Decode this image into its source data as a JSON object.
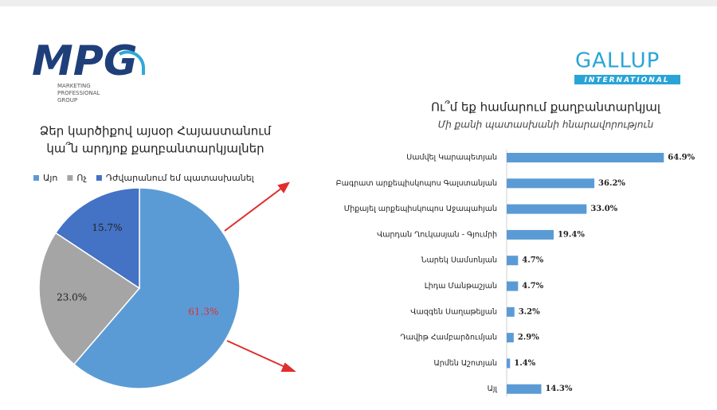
{
  "branding": {
    "left": "MPG",
    "left_sub": [
      "MARKETING",
      "PROFESSIONAL",
      "GROUP"
    ],
    "right": "GALLUP",
    "right_sub": "INTERNATIONAL"
  },
  "chart_data": [
    {
      "type": "pie",
      "title": [
        "Ձեր կարծիքով այսօր Հայաստանում",
        "կա՞ն արդյոք քաղբանտարկյալներ"
      ],
      "categories": [
        "Այո",
        "Ոչ",
        "Դժվարանում եմ պատասխանել"
      ],
      "values": [
        61.3,
        23.0,
        15.7
      ],
      "value_labels": [
        "61.3%",
        "23.0%",
        "15.7%"
      ],
      "colors": [
        "#5b9bd5",
        "#a5a5a5",
        "#4472c4"
      ],
      "legend": "top"
    },
    {
      "type": "bar",
      "orientation": "horizontal",
      "title": "Ու՞մ եք համարում քաղբանտարկյալ",
      "subtitle": "Մի քանի պատասխանի հնարավորություն",
      "categories": [
        "Սամվել Կարապետյան",
        "Բագրատ արքեպիսկոպոս Գալստանյան",
        "Միքայել արքեպիսկոպոս Աջապահյան",
        "Վարդան Ղուկասյան - Գյումրի",
        "Նարեկ Սամսոնյան",
        "Լիդա Մանթաշյան",
        "Վազգեն Սաղաթելյան",
        "Դավիթ Համբարձումյան",
        "Արմեն Աշոտյան",
        "Այլ"
      ],
      "values": [
        64.9,
        36.2,
        33.0,
        19.4,
        4.7,
        4.7,
        3.2,
        2.9,
        1.4,
        14.3
      ],
      "value_labels": [
        "64.9%",
        "36.2%",
        "33.0%",
        "19.4%",
        "4.7%",
        "4.7%",
        "3.2%",
        "2.9%",
        "1.4%",
        "14.3%"
      ],
      "color": "#5b9bd5"
    }
  ]
}
